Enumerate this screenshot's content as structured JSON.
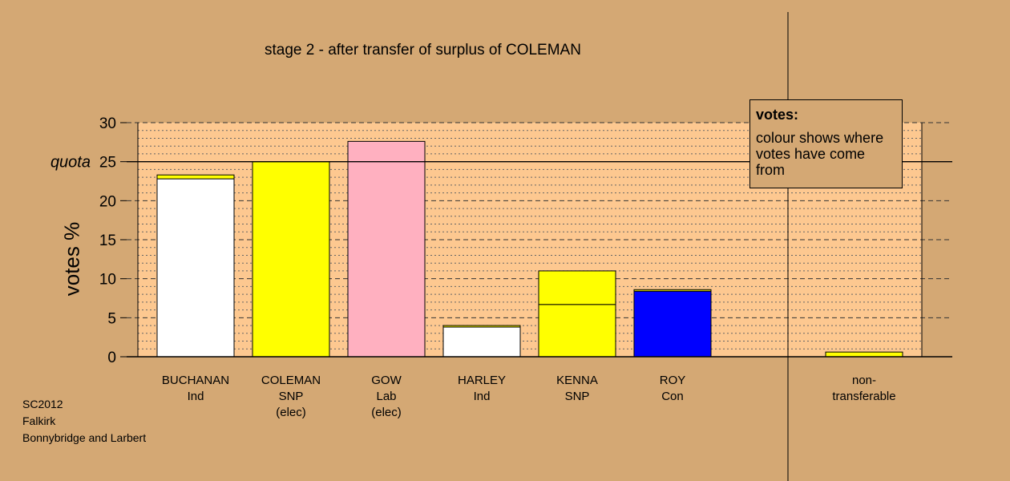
{
  "chart_data": {
    "type": "bar",
    "title": "stage 2 - after transfer of surplus of COLEMAN",
    "ylabel": "votes %",
    "ylim": [
      0,
      30
    ],
    "yticks": [
      "0",
      "5",
      "10",
      "15",
      "20",
      "25",
      "30"
    ],
    "quota": {
      "value": 25,
      "label": "quota"
    },
    "categories": [
      {
        "name": "BUCHANAN",
        "party": "Ind",
        "status": ""
      },
      {
        "name": "COLEMAN",
        "party": "SNP",
        "status": "(elec)"
      },
      {
        "name": "GOW",
        "party": "Lab",
        "status": "(elec)"
      },
      {
        "name": "HARLEY",
        "party": "Ind",
        "status": ""
      },
      {
        "name": "KENNA",
        "party": "SNP",
        "status": ""
      },
      {
        "name": "ROY",
        "party": "Con",
        "status": ""
      },
      {
        "name": "non-",
        "party": "transferable",
        "status": ""
      }
    ],
    "bars": [
      {
        "segments": [
          {
            "value": 22.8,
            "color": "#ffffff"
          },
          {
            "value": 0.5,
            "color": "#ffff00"
          }
        ]
      },
      {
        "segments": [
          {
            "value": 25.0,
            "color": "#ffff00"
          }
        ]
      },
      {
        "segments": [
          {
            "value": 27.6,
            "color": "#ffb0c0"
          }
        ]
      },
      {
        "segments": [
          {
            "value": 3.8,
            "color": "#ffffff"
          },
          {
            "value": 0.2,
            "color": "#ffff00"
          }
        ]
      },
      {
        "segments": [
          {
            "value": 6.7,
            "color": "#ffff00"
          },
          {
            "value": 4.3,
            "color": "#ffff00"
          }
        ]
      },
      {
        "segments": [
          {
            "value": 8.4,
            "color": "#0000ff"
          },
          {
            "value": 0.2,
            "color": "#ffff00"
          }
        ]
      },
      {
        "segments": [
          {
            "value": 0.6,
            "color": "#ffff00"
          }
        ]
      }
    ],
    "grid": true,
    "legend": {
      "title": "votes:",
      "body": "colour shows where votes have come from",
      "placement": "top-right"
    },
    "colors": {
      "background": "#d4a874",
      "plot_area": "#fdc890"
    }
  },
  "footer": {
    "line1": "SC2012",
    "line2": "Falkirk",
    "line3": "Bonnybridge and Larbert"
  }
}
